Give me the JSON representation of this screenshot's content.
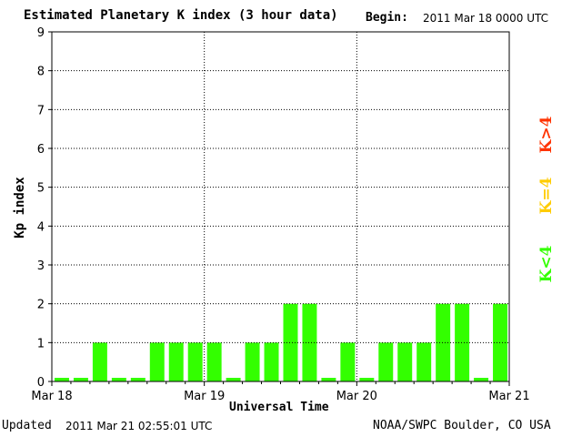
{
  "header": {
    "title": "Estimated Planetary K index (3 hour data)",
    "begin_label": "Begin:",
    "begin_value": "2011 Mar 18 0000 UTC"
  },
  "footer": {
    "updated_label": "Updated",
    "updated_value": "2011 Mar 21 02:55:01 UTC",
    "credit": "NOAA/SWPC Boulder, CO USA"
  },
  "legend": {
    "red": {
      "text": "K>4",
      "color": "#ff3300"
    },
    "yellow": {
      "text": "K=4",
      "color": "#ffcc00"
    },
    "green": {
      "text": "K<4",
      "color": "#33ff00"
    }
  },
  "chart_data": {
    "type": "bar",
    "title": "Estimated Planetary K index (3 hour data)",
    "xlabel": "Universal Time",
    "ylabel": "Kp index",
    "ylim": [
      0,
      9
    ],
    "yticks": [
      0,
      1,
      2,
      3,
      4,
      5,
      6,
      7,
      8,
      9
    ],
    "xticks": [
      "Mar 18",
      "Mar 19",
      "Mar 20",
      "Mar 21"
    ],
    "intervals_per_day": 8,
    "grid": true,
    "bar_color": "#33ff00",
    "values": [
      0,
      0,
      1,
      0,
      0,
      1,
      1,
      1,
      1,
      0,
      1,
      1,
      2,
      2,
      0,
      1,
      0,
      1,
      1,
      1,
      2,
      2,
      0,
      2
    ]
  }
}
